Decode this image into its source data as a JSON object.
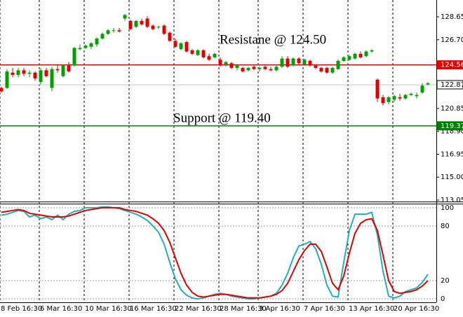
{
  "chart_data": [
    {
      "type": "candlestick",
      "categories": [
        "8 Feb 16:30",
        null,
        null,
        null,
        null,
        null,
        null,
        "6 Mar 16:30",
        null,
        null,
        null,
        null,
        null,
        null,
        null,
        "10 Mar 16:30",
        null,
        null,
        null,
        null,
        null,
        null,
        null,
        "16 Mar 16:30",
        null,
        null,
        null,
        null,
        null,
        null,
        null,
        "22 Mar 16:30",
        null,
        null,
        null,
        null,
        null,
        null,
        null,
        "28 Mar 16:30",
        null,
        null,
        null,
        null,
        null,
        null,
        "3 Apr 16:30",
        null,
        null,
        null,
        null,
        null,
        null,
        null,
        "7 Apr 16:30",
        null,
        null,
        null,
        null,
        null,
        null,
        null,
        "13 Apr 16:30",
        null,
        null,
        null,
        null,
        null,
        null,
        null,
        "20 Apr 16:30",
        null,
        null,
        null,
        null,
        null,
        null
      ],
      "open": [
        122.6,
        122.6,
        123.9,
        123.7,
        124.1,
        123.8,
        123.9,
        123.1,
        124.1,
        122.6,
        124.2,
        123.6,
        124.5,
        124.5,
        125.9,
        126.0,
        126.1,
        126.3,
        126.8,
        127.2,
        127.5,
        127.5,
        128.5,
        128.3,
        127.8,
        128.3,
        128.5,
        127.9,
        127.8,
        127.9,
        127.3,
        126.6,
        125.9,
        126.5,
        125.8,
        125.4,
        125.8,
        125.3,
        125.2,
        125.0,
        124.6,
        124.7,
        124.3,
        124.3,
        124.1,
        124.4,
        124.2,
        124.4,
        124.2,
        124.1,
        124.4,
        125.1,
        124.5,
        125.1,
        124.6,
        124.9,
        124.5,
        124.3,
        124.3,
        123.9,
        124.2,
        124.9,
        125.0,
        125.1,
        125.5,
        125.3,
        125.7,
        123.3,
        121.8,
        121.4,
        121.6,
        121.8,
        121.7,
        122.0,
        121.9,
        122.2,
        122.9
      ],
      "high": [
        122.7,
        124.2,
        124.3,
        124.3,
        124.3,
        124.1,
        124.0,
        124.3,
        124.3,
        124.4,
        124.6,
        124.6,
        124.8,
        126.1,
        126.3,
        126.3,
        126.5,
        126.9,
        127.3,
        127.6,
        127.7,
        127.7,
        128.9,
        128.4,
        128.4,
        128.5,
        128.7,
        128.0,
        127.9,
        128.0,
        127.4,
        126.8,
        126.5,
        126.6,
        125.9,
        125.9,
        125.9,
        125.5,
        125.6,
        125.2,
        124.9,
        124.8,
        124.6,
        124.4,
        124.4,
        124.5,
        124.4,
        124.5,
        124.4,
        124.5,
        125.3,
        125.3,
        125.2,
        125.2,
        125.1,
        125.0,
        124.6,
        124.4,
        124.4,
        124.4,
        125.0,
        125.3,
        125.4,
        125.6,
        125.7,
        125.8,
        125.9,
        123.4,
        122.0,
        121.9,
        122.0,
        122.1,
        122.1,
        122.2,
        122.2,
        123.0,
        123.1
      ],
      "low": [
        122.2,
        122.5,
        123.5,
        123.5,
        123.6,
        123.5,
        123.2,
        122.9,
        123.5,
        122.3,
        123.9,
        123.5,
        123.9,
        124.4,
        125.8,
        125.9,
        125.9,
        126.1,
        126.7,
        127.1,
        127.3,
        127.3,
        128.3,
        127.5,
        127.7,
        127.9,
        127.7,
        127.5,
        127.6,
        127.1,
        126.5,
        126.0,
        125.8,
        125.6,
        125.4,
        125.3,
        125.1,
        124.9,
        125.1,
        124.4,
        124.4,
        124.2,
        124.1,
        123.9,
        124.0,
        124.1,
        124.0,
        124.1,
        124.0,
        124.0,
        124.3,
        124.3,
        124.4,
        124.6,
        124.5,
        124.4,
        124.2,
        123.9,
        123.8,
        123.8,
        124.1,
        124.8,
        124.9,
        125.0,
        125.1,
        125.2,
        125.6,
        121.4,
        121.1,
        121.2,
        121.4,
        121.5,
        121.6,
        121.9,
        121.7,
        122.1,
        122.8
      ],
      "close": [
        122.3,
        124.0,
        123.7,
        124.1,
        123.8,
        123.9,
        123.4,
        124.1,
        123.6,
        124.2,
        124.1,
        124.5,
        124.0,
        126.0,
        126.0,
        126.2,
        126.4,
        126.8,
        127.2,
        127.5,
        127.5,
        127.4,
        128.8,
        127.6,
        128.3,
        128.0,
        127.8,
        127.6,
        127.8,
        127.2,
        126.6,
        126.1,
        126.4,
        125.7,
        125.5,
        125.8,
        125.2,
        125.0,
        125.5,
        124.5,
        124.8,
        124.3,
        124.5,
        124.0,
        124.3,
        124.2,
        124.3,
        124.2,
        124.1,
        124.4,
        125.1,
        124.4,
        125.1,
        124.7,
        125.0,
        124.5,
        124.3,
        124.0,
        123.9,
        124.3,
        124.9,
        125.2,
        125.3,
        125.5,
        125.2,
        125.7,
        125.8,
        121.7,
        121.3,
        121.8,
        121.9,
        121.7,
        122.0,
        122.1,
        122.0,
        122.8,
        123.0
      ],
      "up_color": "#00a000",
      "down_color": "#e00000",
      "ylim": [
        112.93,
        130.08
      ],
      "yticks": [
        128.65,
        {
          "value": 126.7,
          "label": "126.70"
        },
        120.85,
        {
          "value": 118.9,
          "label": "118.90"
        },
        116.95,
        {
          "value": 115,
          "label": "115.00"
        },
        113.05
      ],
      "hlines": [
        {
          "value": 124.56,
          "color": "#e60000"
        },
        {
          "value": 122.87,
          "color": "#c8c8c8"
        },
        {
          "value": 119.37,
          "color": "#008000"
        }
      ],
      "annotations": [
        "Resistane @ 124.50",
        "Support @ 119.40"
      ]
    },
    {
      "type": "line",
      "series": [
        {
          "color": "#22b0b8",
          "values": [
            92,
            93,
            95,
            97,
            96,
            90,
            92,
            88,
            90,
            87,
            92,
            87,
            93,
            96,
            97,
            100,
            100,
            100,
            101,
            101,
            100,
            99,
            97,
            95,
            93,
            90,
            86,
            80,
            73,
            60,
            40,
            22,
            10,
            4,
            1,
            0,
            1,
            3,
            5,
            6,
            5,
            3,
            2,
            1,
            0,
            0,
            1,
            2,
            3,
            6,
            15,
            28,
            45,
            58,
            60,
            63,
            55,
            38,
            15,
            3,
            2,
            40,
            75,
            93,
            93,
            93,
            95,
            70,
            30,
            3,
            1,
            3,
            8,
            10,
            12,
            18,
            27
          ]
        },
        {
          "color": "#e00000",
          "values": [
            95,
            96,
            97,
            98,
            97,
            94,
            93,
            92,
            91,
            90,
            90,
            90,
            91,
            93,
            95,
            97,
            98,
            99,
            100,
            100,
            100,
            100,
            98,
            97,
            96,
            94,
            92,
            88,
            83,
            75,
            62,
            45,
            28,
            15,
            7,
            3,
            2,
            3,
            4,
            5,
            5,
            4,
            3,
            2,
            1,
            1,
            1,
            2,
            3,
            5,
            9,
            17,
            30,
            43,
            53,
            60,
            60,
            52,
            35,
            17,
            10,
            25,
            50,
            72,
            83,
            87,
            88,
            75,
            48,
            20,
            8,
            6,
            7,
            8,
            10,
            14,
            20
          ]
        }
      ],
      "ylim": [
        -3.8,
        103.8
      ],
      "yticks": [
        100,
        80,
        20,
        0
      ],
      "grid": true
    }
  ]
}
